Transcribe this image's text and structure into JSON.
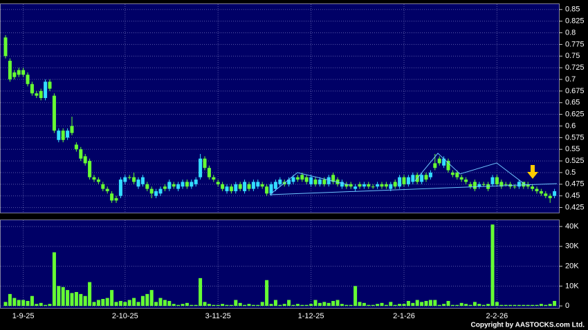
{
  "chart_data": [
    {
      "type": "candlestick",
      "up_color": "#33ddff",
      "down_color": "#66ff33",
      "ylim": [
        0.414,
        0.863
      ],
      "yticks": [
        0.425,
        0.45,
        0.475,
        0.5,
        0.525,
        0.55,
        0.575,
        0.6,
        0.625,
        0.65,
        0.675,
        0.7,
        0.725,
        0.75,
        0.775,
        0.8,
        0.825,
        0.85
      ],
      "grid": true,
      "open": [
        0.79,
        0.74,
        0.715,
        0.72,
        0.72,
        0.71,
        0.69,
        0.67,
        0.675,
        0.66,
        0.695,
        0.665,
        0.57,
        0.59,
        0.575,
        0.6,
        0.56,
        0.55,
        0.535,
        0.525,
        0.49,
        0.485,
        0.475,
        0.465,
        0.455,
        0.445,
        0.45,
        0.48,
        0.49,
        0.49,
        0.47,
        0.475,
        0.475,
        0.465,
        0.45,
        0.455,
        0.47,
        0.465,
        0.475,
        0.465,
        0.47,
        0.48,
        0.47,
        0.475,
        0.49,
        0.53,
        0.51,
        0.49,
        0.48,
        0.475,
        0.46,
        0.47,
        0.46,
        0.475,
        0.46,
        0.475,
        0.465,
        0.47,
        0.475,
        0.47,
        0.455,
        0.465,
        0.475,
        0.48,
        0.475,
        0.48,
        0.49,
        0.495,
        0.49,
        0.475,
        0.485,
        0.475,
        0.485,
        0.475,
        0.495,
        0.485,
        0.47,
        0.475,
        0.475,
        0.465,
        0.475,
        0.47,
        0.475,
        0.47,
        0.47,
        0.475,
        0.475,
        0.465,
        0.48,
        0.47,
        0.49,
        0.475,
        0.48,
        0.495,
        0.48,
        0.495,
        0.49,
        0.52,
        0.53,
        0.515,
        0.525,
        0.5,
        0.5,
        0.49,
        0.485,
        0.475,
        0.48,
        0.47,
        0.475,
        0.475,
        0.475,
        0.49,
        0.48,
        0.475,
        0.475,
        0.47,
        0.47,
        0.48,
        0.475,
        0.47,
        0.465,
        0.46,
        0.455,
        0.45,
        0.45
      ],
      "high": [
        0.795,
        0.745,
        0.72,
        0.725,
        0.725,
        0.715,
        0.695,
        0.675,
        0.68,
        0.7,
        0.7,
        0.67,
        0.595,
        0.595,
        0.595,
        0.62,
        0.565,
        0.555,
        0.54,
        0.53,
        0.495,
        0.49,
        0.48,
        0.47,
        0.46,
        0.45,
        0.49,
        0.495,
        0.495,
        0.5,
        0.49,
        0.495,
        0.48,
        0.47,
        0.465,
        0.47,
        0.475,
        0.485,
        0.48,
        0.48,
        0.485,
        0.485,
        0.485,
        0.49,
        0.54,
        0.535,
        0.515,
        0.495,
        0.485,
        0.48,
        0.475,
        0.475,
        0.48,
        0.48,
        0.485,
        0.48,
        0.485,
        0.485,
        0.48,
        0.475,
        0.48,
        0.485,
        0.49,
        0.485,
        0.49,
        0.495,
        0.495,
        0.5,
        0.495,
        0.495,
        0.49,
        0.49,
        0.49,
        0.495,
        0.5,
        0.49,
        0.485,
        0.48,
        0.48,
        0.475,
        0.48,
        0.48,
        0.48,
        0.475,
        0.48,
        0.48,
        0.48,
        0.48,
        0.485,
        0.495,
        0.495,
        0.495,
        0.5,
        0.5,
        0.5,
        0.5,
        0.505,
        0.54,
        0.535,
        0.535,
        0.53,
        0.505,
        0.505,
        0.495,
        0.49,
        0.48,
        0.485,
        0.48,
        0.48,
        0.48,
        0.495,
        0.495,
        0.485,
        0.48,
        0.48,
        0.475,
        0.485,
        0.48,
        0.48,
        0.475,
        0.47,
        0.465,
        0.46,
        0.455,
        0.465
      ],
      "low": [
        0.745,
        0.695,
        0.7,
        0.705,
        0.705,
        0.685,
        0.665,
        0.66,
        0.655,
        0.655,
        0.675,
        0.585,
        0.565,
        0.565,
        0.57,
        0.58,
        0.545,
        0.525,
        0.515,
        0.485,
        0.48,
        0.475,
        0.46,
        0.455,
        0.435,
        0.435,
        0.445,
        0.475,
        0.485,
        0.475,
        0.465,
        0.47,
        0.46,
        0.445,
        0.445,
        0.45,
        0.46,
        0.46,
        0.465,
        0.46,
        0.465,
        0.465,
        0.465,
        0.47,
        0.485,
        0.505,
        0.485,
        0.48,
        0.47,
        0.46,
        0.455,
        0.455,
        0.455,
        0.46,
        0.455,
        0.46,
        0.46,
        0.465,
        0.465,
        0.45,
        0.45,
        0.46,
        0.47,
        0.47,
        0.47,
        0.475,
        0.48,
        0.48,
        0.475,
        0.47,
        0.47,
        0.47,
        0.47,
        0.47,
        0.475,
        0.47,
        0.465,
        0.465,
        0.465,
        0.46,
        0.465,
        0.465,
        0.465,
        0.465,
        0.465,
        0.465,
        0.465,
        0.46,
        0.465,
        0.465,
        0.47,
        0.47,
        0.475,
        0.475,
        0.475,
        0.48,
        0.485,
        0.505,
        0.515,
        0.51,
        0.5,
        0.49,
        0.485,
        0.48,
        0.475,
        0.465,
        0.46,
        0.465,
        0.47,
        0.46,
        0.47,
        0.47,
        0.465,
        0.47,
        0.465,
        0.465,
        0.465,
        0.465,
        0.465,
        0.46,
        0.455,
        0.45,
        0.445,
        0.435,
        0.445
      ],
      "close": [
        0.75,
        0.7,
        0.705,
        0.71,
        0.71,
        0.69,
        0.67,
        0.665,
        0.66,
        0.695,
        0.68,
        0.59,
        0.59,
        0.57,
        0.59,
        0.585,
        0.55,
        0.53,
        0.52,
        0.49,
        0.485,
        0.48,
        0.465,
        0.46,
        0.44,
        0.44,
        0.485,
        0.49,
        0.49,
        0.48,
        0.485,
        0.49,
        0.465,
        0.455,
        0.46,
        0.465,
        0.465,
        0.48,
        0.47,
        0.475,
        0.48,
        0.47,
        0.48,
        0.485,
        0.53,
        0.51,
        0.49,
        0.485,
        0.475,
        0.465,
        0.47,
        0.46,
        0.475,
        0.465,
        0.48,
        0.465,
        0.48,
        0.48,
        0.47,
        0.455,
        0.475,
        0.48,
        0.485,
        0.475,
        0.485,
        0.49,
        0.485,
        0.485,
        0.48,
        0.49,
        0.475,
        0.485,
        0.475,
        0.49,
        0.48,
        0.475,
        0.48,
        0.47,
        0.47,
        0.47,
        0.47,
        0.475,
        0.47,
        0.47,
        0.475,
        0.47,
        0.47,
        0.475,
        0.47,
        0.49,
        0.475,
        0.49,
        0.495,
        0.48,
        0.495,
        0.485,
        0.5,
        0.51,
        0.52,
        0.53,
        0.505,
        0.495,
        0.49,
        0.485,
        0.48,
        0.47,
        0.465,
        0.475,
        0.475,
        0.465,
        0.49,
        0.475,
        0.47,
        0.475,
        0.47,
        0.47,
        0.48,
        0.47,
        0.47,
        0.465,
        0.46,
        0.455,
        0.45,
        0.445,
        0.46
      ]
    },
    {
      "type": "bar",
      "color": "#66ff33",
      "ylim": [
        -1000,
        43500
      ],
      "yticks": [
        0,
        {
          "value": 10000,
          "label": "10K"
        },
        {
          "value": 20000,
          "label": "20K"
        },
        {
          "value": 30000,
          "label": "30K"
        },
        {
          "value": 40000,
          "label": "40K"
        }
      ],
      "grid": true,
      "categories": [
        null,
        null,
        null,
        null,
        "1-9-25",
        null,
        null,
        null,
        null,
        null,
        null,
        null,
        null,
        null,
        null,
        null,
        null,
        null,
        null,
        null,
        null,
        null,
        null,
        null,
        null,
        null,
        null,
        "2-10-25",
        null,
        null,
        null,
        null,
        null,
        null,
        null,
        null,
        null,
        null,
        null,
        null,
        null,
        null,
        null,
        null,
        null,
        null,
        null,
        null,
        "3-11-25",
        null,
        null,
        null,
        null,
        null,
        null,
        null,
        null,
        null,
        null,
        null,
        null,
        null,
        null,
        null,
        null,
        null,
        null,
        null,
        null,
        "1-12-25",
        null,
        null,
        null,
        null,
        null,
        null,
        null,
        null,
        null,
        null,
        null,
        null,
        null,
        null,
        null,
        null,
        null,
        null,
        null,
        null,
        "2-1-26",
        null,
        null,
        null,
        null,
        null,
        null,
        null,
        null,
        null,
        null,
        null,
        null,
        null,
        null,
        null,
        null,
        null,
        null,
        null,
        null,
        "2-2-26",
        null,
        null,
        null,
        null,
        null,
        null,
        null,
        null,
        null,
        null,
        null,
        null,
        null
      ],
      "values": [
        2000,
        6000,
        4000,
        3000,
        3000,
        2500,
        5000,
        1000,
        1500,
        500,
        1000,
        27000,
        10000,
        9500,
        8000,
        6500,
        7000,
        6000,
        5000,
        12000,
        2000,
        3000,
        3500,
        4000,
        8000,
        2000,
        2500,
        2000,
        3000,
        4000,
        2000,
        5000,
        6000,
        8000,
        2000,
        4000,
        3000,
        2500,
        1000,
        500,
        1000,
        1500,
        500,
        500,
        14000,
        2000,
        1000,
        500,
        500,
        1000,
        500,
        500,
        3000,
        1500,
        500,
        1000,
        500,
        500,
        2000,
        13000,
        1000,
        3000,
        500,
        1000,
        3000,
        500,
        1000,
        500,
        500,
        1000,
        3000,
        1500,
        2000,
        1500,
        2500,
        3000,
        1000,
        500,
        500,
        10000,
        2000,
        1500,
        500,
        500,
        1000,
        1500,
        500,
        2000,
        500,
        1000,
        1000,
        2500,
        1500,
        3000,
        2000,
        2500,
        3000,
        3000,
        500,
        1000,
        2500,
        500,
        500,
        1500,
        1000,
        500,
        2000,
        1000,
        500,
        1000,
        41000,
        2000,
        500,
        500,
        500,
        500,
        500,
        500,
        500,
        500,
        500,
        1000,
        500,
        1000,
        2500
      ],
      "credit": "Copyright by AASTOCKS.com Ltd."
    }
  ]
}
